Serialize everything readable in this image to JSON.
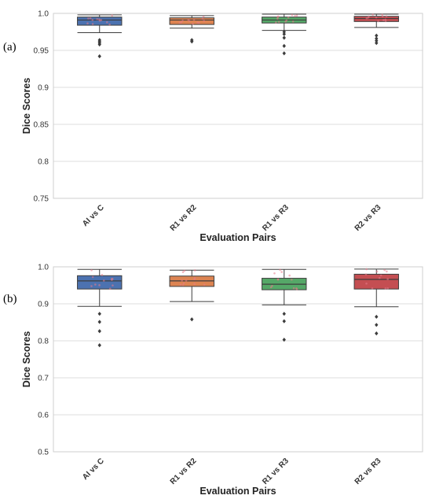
{
  "chart_data": [
    {
      "panel_label": "(a)",
      "type": "box",
      "title": "",
      "xlabel": "Evaluation Pairs",
      "ylabel": "Dice Scores",
      "ylim": [
        0.75,
        1.0
      ],
      "yticks": [
        0.75,
        0.8,
        0.85,
        0.9,
        0.95,
        1.0
      ],
      "ytick_labels": [
        "0.75",
        "0.8",
        "0.85",
        "0.9",
        "0.95",
        "1.0"
      ],
      "grid": true,
      "categories": [
        "AI vs C",
        "R1 vs R2",
        "R1 vs R3",
        "R2 vs R3"
      ],
      "colors": [
        "#4c72b0",
        "#dd8452",
        "#55a868",
        "#c44e52"
      ],
      "boxes": [
        {
          "whisker_low": 0.974,
          "q1": 0.984,
          "median": 0.991,
          "q3": 0.995,
          "whisker_high": 0.998,
          "outliers": [
            0.942,
            0.958,
            0.96,
            0.962,
            0.964
          ]
        },
        {
          "whisker_low": 0.98,
          "q1": 0.985,
          "median": 0.991,
          "q3": 0.994,
          "whisker_high": 0.997,
          "outliers": [
            0.962,
            0.964
          ]
        },
        {
          "whisker_low": 0.977,
          "q1": 0.987,
          "median": 0.991,
          "q3": 0.995,
          "whisker_high": 0.999,
          "outliers": [
            0.946,
            0.956,
            0.967,
            0.972,
            0.975
          ]
        },
        {
          "whisker_low": 0.981,
          "q1": 0.989,
          "median": 0.993,
          "q3": 0.996,
          "whisker_high": 0.999,
          "outliers": [
            0.96,
            0.963,
            0.966,
            0.97
          ]
        }
      ]
    },
    {
      "panel_label": "(b)",
      "type": "box",
      "title": "",
      "xlabel": "Evaluation Pairs",
      "ylabel": "Dice Scores",
      "ylim": [
        0.5,
        1.0
      ],
      "yticks": [
        0.5,
        0.6,
        0.7,
        0.8,
        0.9,
        1.0
      ],
      "ytick_labels": [
        "0.5",
        "0.6",
        "0.7",
        "0.8",
        "0.9",
        "1.0"
      ],
      "grid": true,
      "categories": [
        "AI vs C",
        "R1 vs R2",
        "R1 vs R3",
        "R2 vs R3"
      ],
      "colors": [
        "#4c72b0",
        "#dd8452",
        "#55a868",
        "#c44e52"
      ],
      "boxes": [
        {
          "whisker_low": 0.893,
          "q1": 0.94,
          "median": 0.962,
          "q3": 0.976,
          "whisker_high": 0.993,
          "outliers": [
            0.788,
            0.826,
            0.851,
            0.873
          ]
        },
        {
          "whisker_low": 0.906,
          "q1": 0.947,
          "median": 0.962,
          "q3": 0.975,
          "whisker_high": 0.991,
          "outliers": [
            0.858
          ]
        },
        {
          "whisker_low": 0.897,
          "q1": 0.938,
          "median": 0.953,
          "q3": 0.969,
          "whisker_high": 0.993,
          "outliers": [
            0.803,
            0.853,
            0.873
          ]
        },
        {
          "whisker_low": 0.892,
          "q1": 0.94,
          "median": 0.966,
          "q3": 0.98,
          "whisker_high": 0.994,
          "outliers": [
            0.82,
            0.843,
            0.865
          ]
        }
      ]
    }
  ]
}
